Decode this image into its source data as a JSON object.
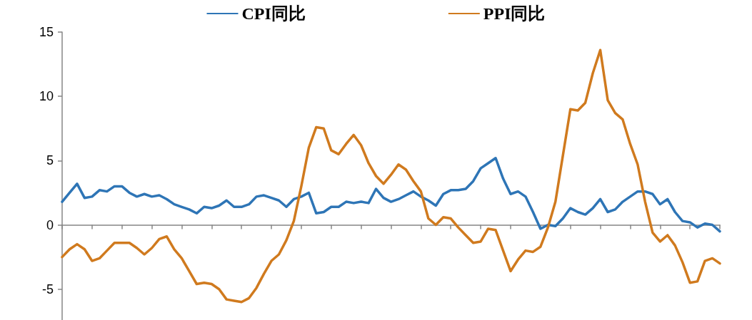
{
  "chart_data": {
    "type": "line",
    "categories": [
      null,
      null,
      null,
      null,
      null,
      null,
      null,
      null,
      null,
      null,
      null,
      null,
      null,
      null,
      null,
      null,
      null,
      null,
      null,
      null,
      null,
      null,
      null,
      null,
      null,
      null,
      null,
      null,
      null,
      null,
      null,
      null,
      null,
      null,
      null,
      null,
      null,
      null,
      null,
      null,
      null,
      null,
      null,
      null,
      null,
      null,
      null,
      null,
      null,
      null,
      null,
      null,
      null,
      null,
      null,
      null,
      null,
      null,
      null,
      null,
      null,
      null,
      null,
      null,
      null,
      null,
      null,
      null,
      null,
      null,
      null,
      null,
      null,
      null,
      null,
      null,
      null,
      null,
      null,
      null,
      null,
      null,
      null,
      null,
      null,
      null,
      null,
      null,
      null
    ],
    "ylim": [
      -7.4,
      15
    ],
    "yticks": [
      -5,
      0,
      5,
      10,
      15
    ],
    "tick_labels": "y",
    "legend": "top",
    "marker": "none",
    "line_style": "solid",
    "series": [
      {
        "name": "CPI同比",
        "color": "#2e75b6",
        "values": [
          1.8,
          2.5,
          3.2,
          2.1,
          2.2,
          2.7,
          2.6,
          3.0,
          3.0,
          2.5,
          2.2,
          2.4,
          2.2,
          2.3,
          2.0,
          1.6,
          1.4,
          1.2,
          0.9,
          1.4,
          1.3,
          1.5,
          1.9,
          1.4,
          1.4,
          1.6,
          2.2,
          2.3,
          2.1,
          1.9,
          1.4,
          2.0,
          2.2,
          2.5,
          0.9,
          1.0,
          1.4,
          1.4,
          1.8,
          1.7,
          1.8,
          1.7,
          2.8,
          2.1,
          1.8,
          2.0,
          2.3,
          2.6,
          2.2,
          1.9,
          1.5,
          2.4,
          2.7,
          2.7,
          2.8,
          3.4,
          4.4,
          4.8,
          5.2,
          3.6,
          2.4,
          2.6,
          2.2,
          1.0,
          -0.3,
          0.0,
          -0.1,
          0.5,
          1.3,
          1.0,
          0.8,
          1.3,
          2.0,
          1.0,
          1.2,
          1.8,
          2.2,
          2.6,
          2.6,
          2.4,
          1.6,
          2.0,
          1.0,
          0.3,
          0.2,
          -0.2,
          0.1,
          0.0,
          -0.5
        ]
      },
      {
        "name": "PPI同比",
        "color": "#d07a1e",
        "values": [
          -2.5,
          -1.9,
          -1.5,
          -1.9,
          -2.8,
          -2.6,
          -2.0,
          -1.4,
          -1.4,
          -1.4,
          -1.8,
          -2.3,
          -1.8,
          -1.1,
          -0.9,
          -1.9,
          -2.6,
          -3.6,
          -4.6,
          -4.5,
          -4.6,
          -5.0,
          -5.8,
          -5.9,
          -6.0,
          -5.7,
          -4.9,
          -3.8,
          -2.8,
          -2.3,
          -1.2,
          0.3,
          3.0,
          6.0,
          7.6,
          7.5,
          5.8,
          5.5,
          6.3,
          7.0,
          6.2,
          4.8,
          3.8,
          3.2,
          3.9,
          4.7,
          4.3,
          3.4,
          2.6,
          0.5,
          0.0,
          0.6,
          0.5,
          -0.2,
          -0.8,
          -1.4,
          -1.3,
          -0.3,
          -0.4,
          -2.0,
          -3.6,
          -2.7,
          -2.0,
          -2.1,
          -1.7,
          -0.2,
          1.8,
          5.4,
          9.0,
          8.9,
          9.5,
          11.8,
          13.6,
          9.7,
          8.7,
          8.2,
          6.3,
          4.7,
          1.8,
          -0.6,
          -1.3,
          -0.8,
          -1.6,
          -2.9,
          -4.5,
          -4.4,
          -2.8,
          -2.6,
          -3.0
        ]
      }
    ]
  }
}
